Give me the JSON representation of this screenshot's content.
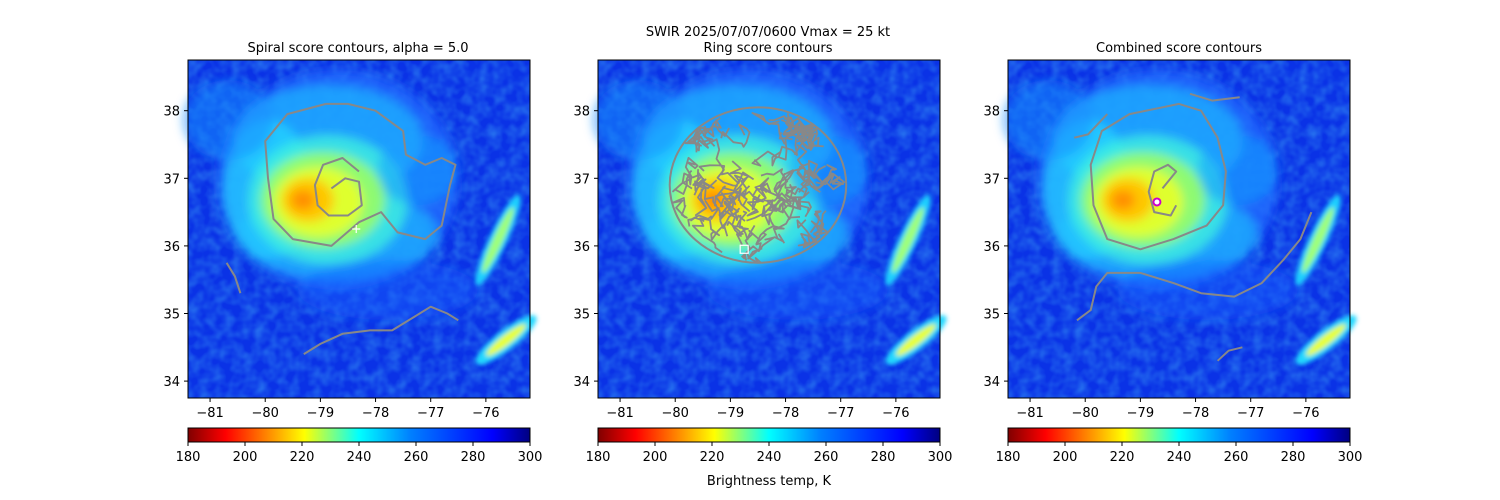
{
  "figure": {
    "suptitle_line1": "SWIR  2025/07/07/0600    Vmax = 25 kt",
    "colorbar_label": "Brightness temp, K"
  },
  "chart_data": [
    {
      "type": "heatmap",
      "title": "Spiral score contours, alpha =  5.0",
      "xlim": [
        -81.4,
        -75.2
      ],
      "ylim": [
        33.75,
        38.75
      ],
      "xticks": [
        -81,
        -80,
        -79,
        -78,
        -77,
        -76
      ],
      "yticks": [
        34,
        35,
        36,
        37,
        38
      ],
      "xticklabels": [
        "−81",
        "−80",
        "−79",
        "−78",
        "−77",
        "−76"
      ],
      "yticklabels": [
        "34",
        "35",
        "36",
        "37",
        "38"
      ],
      "colorbar": {
        "min": 180,
        "max": 300,
        "ticks": [
          180,
          200,
          220,
          240,
          260,
          280,
          300
        ],
        "colormap": "jet_r"
      },
      "marker": {
        "kind": "plus",
        "lon": -78.35,
        "lat": 36.25,
        "color": "#ffffff"
      },
      "contours": [
        [
          [
            -78.9,
            38.1
          ],
          [
            -79.6,
            37.95
          ],
          [
            -80.0,
            37.55
          ],
          [
            -79.95,
            37.0
          ],
          [
            -79.85,
            36.4
          ],
          [
            -79.5,
            36.1
          ],
          [
            -78.8,
            36.0
          ],
          [
            -78.3,
            36.35
          ],
          [
            -77.9,
            36.5
          ],
          [
            -77.6,
            36.2
          ],
          [
            -77.1,
            36.1
          ],
          [
            -76.8,
            36.3
          ],
          [
            -76.65,
            36.9
          ],
          [
            -76.55,
            37.2
          ],
          [
            -76.8,
            37.3
          ],
          [
            -77.1,
            37.2
          ],
          [
            -77.45,
            37.35
          ],
          [
            -77.5,
            37.7
          ],
          [
            -78.0,
            38.0
          ],
          [
            -78.5,
            38.1
          ],
          [
            -78.9,
            38.1
          ]
        ],
        [
          [
            -78.8,
            36.85
          ],
          [
            -78.55,
            37.0
          ],
          [
            -78.3,
            36.95
          ],
          [
            -78.25,
            36.6
          ],
          [
            -78.5,
            36.45
          ],
          [
            -78.85,
            36.45
          ],
          [
            -79.05,
            36.6
          ],
          [
            -79.1,
            36.9
          ],
          [
            -78.95,
            37.2
          ],
          [
            -78.6,
            37.3
          ],
          [
            -78.3,
            37.1
          ]
        ],
        [
          [
            -80.7,
            35.75
          ],
          [
            -80.55,
            35.55
          ],
          [
            -80.45,
            35.3
          ]
        ],
        [
          [
            -79.3,
            34.4
          ],
          [
            -79.0,
            34.55
          ],
          [
            -78.6,
            34.7
          ],
          [
            -78.1,
            34.75
          ],
          [
            -77.7,
            34.75
          ],
          [
            -77.3,
            34.95
          ],
          [
            -77.0,
            35.1
          ],
          [
            -76.7,
            35.0
          ],
          [
            -76.5,
            34.9
          ]
        ]
      ]
    },
    {
      "type": "heatmap",
      "title": "Ring score contours",
      "xlim": [
        -81.4,
        -75.2
      ],
      "ylim": [
        33.75,
        38.75
      ],
      "xticks": [
        -81,
        -80,
        -79,
        -78,
        -77,
        -76
      ],
      "yticks": [
        34,
        35,
        36,
        37,
        38
      ],
      "xticklabels": [
        "−81",
        "−80",
        "−79",
        "−78",
        "−77",
        "−76"
      ],
      "yticklabels": [
        "34",
        "35",
        "36",
        "37",
        "38"
      ],
      "colorbar": {
        "min": 180,
        "max": 300,
        "ticks": [
          180,
          200,
          220,
          240,
          260,
          280,
          300
        ],
        "colormap": "jet_r"
      },
      "marker": {
        "kind": "square",
        "lon": -78.75,
        "lat": 35.95,
        "color": "#ffffff"
      },
      "contour_region": {
        "center_lon": -78.5,
        "center_lat": 36.9,
        "rx_deg": 1.6,
        "ry_deg": 1.15
      }
    },
    {
      "type": "heatmap",
      "title": "Combined score contours",
      "xlim": [
        -81.4,
        -75.2
      ],
      "ylim": [
        33.75,
        38.75
      ],
      "xticks": [
        -81,
        -80,
        -79,
        -78,
        -77,
        -76
      ],
      "yticks": [
        34,
        35,
        36,
        37,
        38
      ],
      "xticklabels": [
        "−81",
        "−80",
        "−79",
        "−78",
        "−77",
        "−76"
      ],
      "yticklabels": [
        "34",
        "35",
        "36",
        "37",
        "38"
      ],
      "colorbar": {
        "min": 180,
        "max": 300,
        "ticks": [
          180,
          200,
          220,
          240,
          260,
          280,
          300
        ],
        "colormap": "jet_r"
      },
      "marker": {
        "kind": "circle",
        "lon": -78.7,
        "lat": 36.65,
        "color": "#cc00cc"
      },
      "contours": [
        [
          [
            -78.6,
            38.05
          ],
          [
            -79.2,
            37.95
          ],
          [
            -79.7,
            37.7
          ],
          [
            -79.9,
            37.2
          ],
          [
            -79.85,
            36.6
          ],
          [
            -79.6,
            36.1
          ],
          [
            -79.0,
            35.95
          ],
          [
            -78.4,
            36.1
          ],
          [
            -77.8,
            36.3
          ],
          [
            -77.5,
            36.6
          ],
          [
            -77.45,
            37.1
          ],
          [
            -77.6,
            37.6
          ],
          [
            -77.9,
            38.0
          ],
          [
            -78.3,
            38.1
          ],
          [
            -78.6,
            38.05
          ]
        ],
        [
          [
            -78.6,
            36.85
          ],
          [
            -78.35,
            37.1
          ],
          [
            -78.5,
            37.2
          ],
          [
            -78.75,
            37.1
          ],
          [
            -78.85,
            36.8
          ],
          [
            -78.75,
            36.5
          ],
          [
            -78.45,
            36.45
          ],
          [
            -78.35,
            36.6
          ]
        ],
        [
          [
            -77.2,
            38.2
          ],
          [
            -77.7,
            38.15
          ],
          [
            -78.1,
            38.25
          ]
        ],
        [
          [
            -80.2,
            37.6
          ],
          [
            -79.95,
            37.65
          ],
          [
            -79.6,
            37.95
          ]
        ],
        [
          [
            -80.15,
            34.9
          ],
          [
            -79.9,
            35.05
          ],
          [
            -79.8,
            35.4
          ],
          [
            -79.6,
            35.6
          ],
          [
            -79.0,
            35.6
          ],
          [
            -78.4,
            35.45
          ],
          [
            -77.9,
            35.3
          ],
          [
            -77.3,
            35.25
          ],
          [
            -76.8,
            35.45
          ],
          [
            -76.4,
            35.8
          ],
          [
            -76.1,
            36.1
          ],
          [
            -75.9,
            36.5
          ]
        ],
        [
          [
            -77.6,
            34.3
          ],
          [
            -77.4,
            34.45
          ],
          [
            -77.15,
            34.5
          ]
        ]
      ]
    }
  ]
}
